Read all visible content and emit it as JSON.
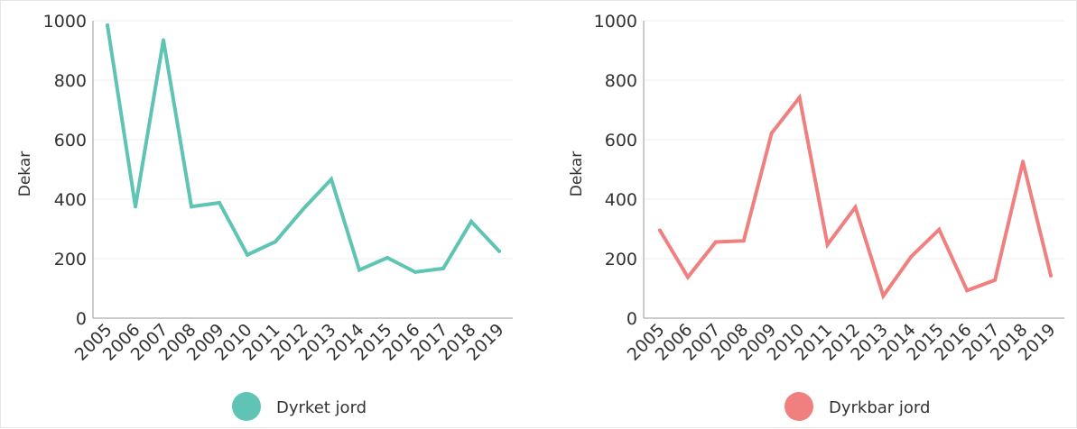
{
  "chart_data": [
    {
      "type": "line",
      "title": "",
      "xlabel": "",
      "ylabel": "Dekar",
      "categories": [
        "2005",
        "2006",
        "2007",
        "2008",
        "2009",
        "2010",
        "2011",
        "2012",
        "2013",
        "2014",
        "2015",
        "2016",
        "2017",
        "2018",
        "2019"
      ],
      "series": [
        {
          "name": "Dyrket jord",
          "color": "#5fc4b4",
          "values": [
            985,
            375,
            935,
            375,
            388,
            213,
            257,
            367,
            467,
            162,
            203,
            155,
            167,
            325,
            225
          ]
        }
      ],
      "ylim": [
        0,
        1000
      ],
      "yticks": [
        0,
        200,
        400,
        600,
        800,
        1000
      ],
      "grid": true,
      "legend": "bottom-center"
    },
    {
      "type": "line",
      "title": "",
      "xlabel": "",
      "ylabel": "Dekar",
      "categories": [
        "2005",
        "2006",
        "2007",
        "2008",
        "2009",
        "2010",
        "2011",
        "2012",
        "2013",
        "2014",
        "2015",
        "2016",
        "2017",
        "2018",
        "2019"
      ],
      "series": [
        {
          "name": "Dyrkbar jord",
          "color": "#f08080",
          "values": [
            295,
            138,
            256,
            260,
            622,
            742,
            247,
            373,
            75,
            207,
            298,
            93,
            128,
            526,
            143
          ]
        }
      ],
      "ylim": [
        0,
        1000
      ],
      "yticks": [
        0,
        200,
        400,
        600,
        800,
        1000
      ],
      "grid": true,
      "legend": "bottom-center"
    }
  ]
}
